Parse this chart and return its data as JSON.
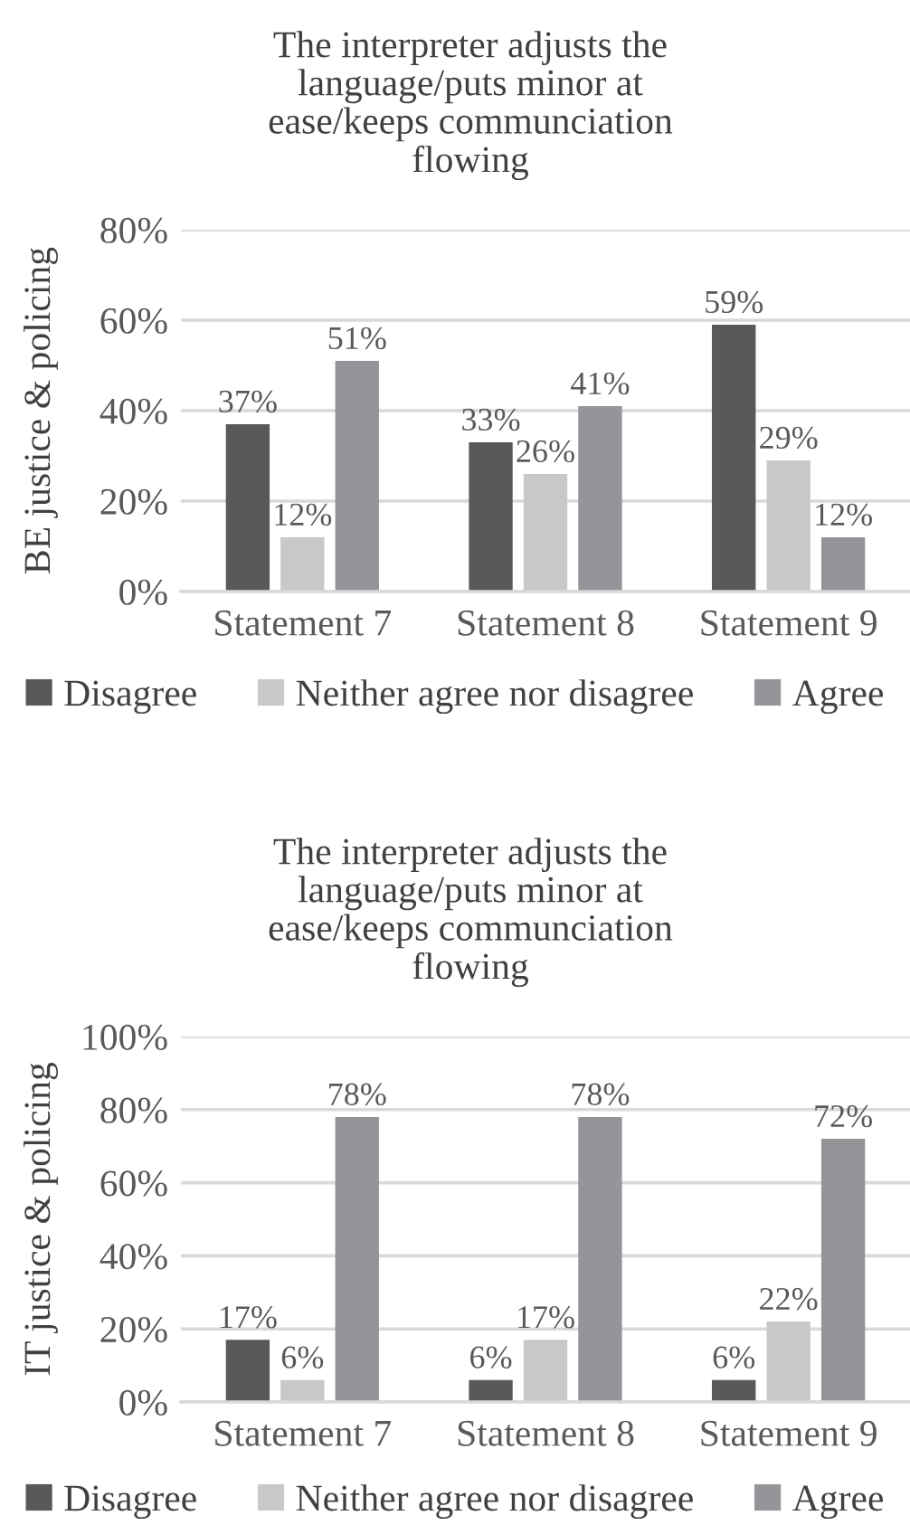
{
  "chart_data": [
    {
      "type": "bar",
      "title": "The interpreter adjusts the\nlanguage/puts minor at\nease/keeps communciation\nflowing",
      "ylabel": "BE justice & policing",
      "categories": [
        "Statement 7",
        "Statement 8",
        "Statement 9"
      ],
      "series": [
        {
          "name": "Disagree",
          "color": "#58595b",
          "values": [
            37,
            33,
            59
          ],
          "value_labels": [
            "37%",
            "33%",
            "59%"
          ]
        },
        {
          "name": "Neither agree nor disagree",
          "color": "#c8c8c8",
          "values": [
            12,
            26,
            29
          ],
          "value_labels": [
            "12%",
            "26%",
            "29%"
          ]
        },
        {
          "name": "Agree",
          "color": "#939598",
          "values": [
            51,
            41,
            12
          ],
          "value_labels": [
            "51%",
            "41%",
            "12%"
          ]
        }
      ],
      "ylim": [
        0,
        80
      ],
      "yticks": [
        {
          "value": 0,
          "label": "0%"
        },
        {
          "value": 20,
          "label": "20%"
        },
        {
          "value": 40,
          "label": "40%"
        },
        {
          "value": 60,
          "label": "60%"
        },
        {
          "value": 80,
          "label": "80%"
        }
      ],
      "grid": "y",
      "legend": "bottom"
    },
    {
      "type": "bar",
      "title": "The interpreter adjusts the\nlanguage/puts minor at\nease/keeps communciation\nflowing",
      "ylabel": "IT justice & policing",
      "categories": [
        "Statement 7",
        "Statement 8",
        "Statement 9"
      ],
      "series": [
        {
          "name": "Disagree",
          "color": "#58595b",
          "values": [
            17,
            6,
            6
          ],
          "value_labels": [
            "17%",
            "6%",
            "6%"
          ]
        },
        {
          "name": "Neither agree nor disagree",
          "color": "#c8c8c8",
          "values": [
            6,
            17,
            22
          ],
          "value_labels": [
            "6%",
            "17%",
            "22%"
          ]
        },
        {
          "name": "Agree",
          "color": "#939598",
          "values": [
            78,
            78,
            72
          ],
          "value_labels": [
            "78%",
            "78%",
            "72%"
          ]
        }
      ],
      "ylim": [
        0,
        100
      ],
      "yticks": [
        {
          "value": 0,
          "label": "0%"
        },
        {
          "value": 20,
          "label": "20%"
        },
        {
          "value": 40,
          "label": "40%"
        },
        {
          "value": 60,
          "label": "60%"
        },
        {
          "value": 80,
          "label": "80%"
        },
        {
          "value": 100,
          "label": "100%"
        }
      ],
      "grid": "y",
      "legend": "bottom"
    }
  ]
}
